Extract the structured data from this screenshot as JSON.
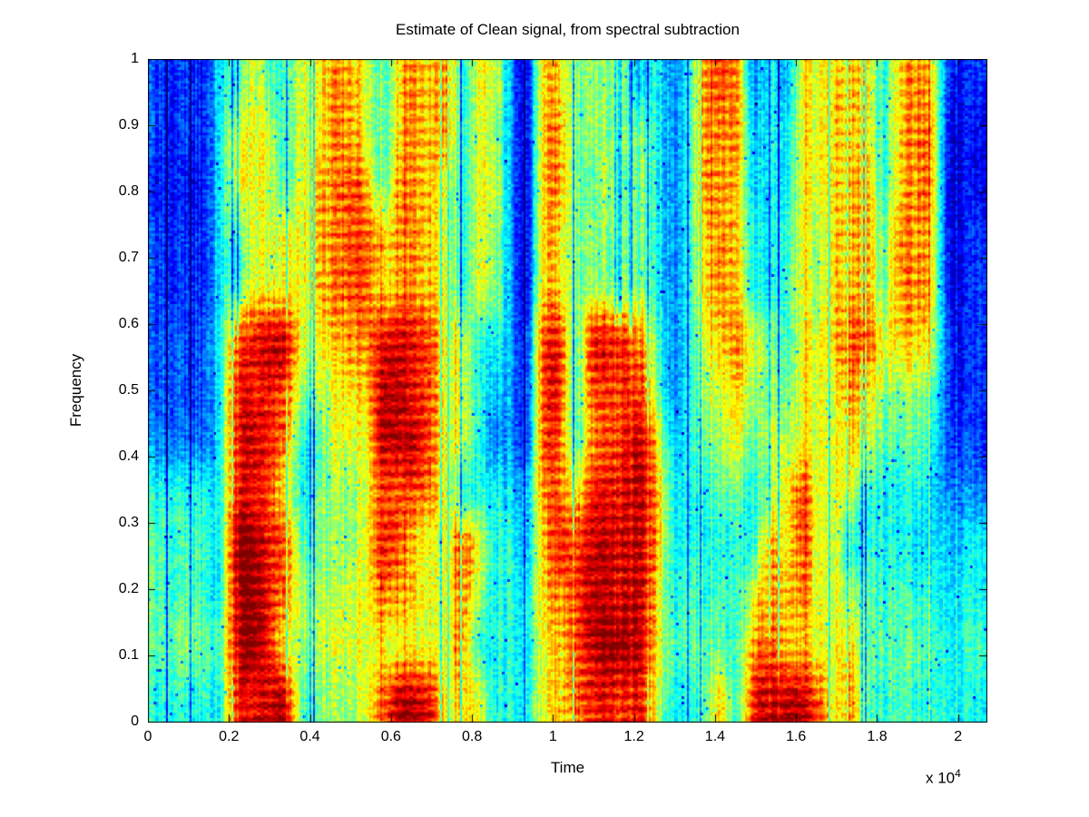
{
  "chart_data": {
    "type": "heatmap",
    "title": "Estimate of Clean signal, from spectral subtraction",
    "xlabel": "Time",
    "ylabel": "Frequency",
    "x_multiplier": "x 10",
    "x_multiplier_exponent": "4",
    "xlim": [
      0,
      20700
    ],
    "ylim": [
      0,
      1
    ],
    "x_ticks": [
      "0",
      "0.2",
      "0.4",
      "0.6",
      "0.8",
      "1",
      "1.2",
      "1.4",
      "1.6",
      "1.8",
      "2"
    ],
    "x_tick_values": [
      0,
      2000,
      4000,
      6000,
      8000,
      10000,
      12000,
      14000,
      16000,
      18000,
      20000
    ],
    "y_ticks": [
      "0",
      "0.1",
      "0.2",
      "0.3",
      "0.4",
      "0.5",
      "0.6",
      "0.7",
      "0.8",
      "0.9",
      "1"
    ],
    "y_tick_values": [
      0,
      0.1,
      0.2,
      0.3,
      0.4,
      0.5,
      0.6,
      0.7,
      0.8,
      0.9,
      1
    ],
    "colormap": "jet",
    "frame_color": "#000000",
    "background": "#ffffff",
    "grid": {
      "cols": 52,
      "rows": 13,
      "encoding": "hex digit 0-15 = normalized power 0-1; row 0 = frequency 1.0 (top), last row = frequency 0 (bottom); columns span time 0 to 20700",
      "intensity_rows": [
        "32326697699bb96abab69942aa78784646bcb46499aaa6aba323",
        "32326999699bb96abab69842ab78787646bbb56599aaa6abb222",
        "2222699969abcb6bba969942ab77877646bba56599aab6abb222",
        "3232669999abccabba969842aa78787646aba66698aab7bba223",
        "3232669999abcc9bba969842aa78787646aba66698aab7bba223",
        "33336cdee99abbdedc996643cd6dddb7469ab98699acc9aa9323",
        "33336dddc889aaeedc996543cd6ccdc84689a887999ba8887323",
        "43436dedb66999eeec996443cc6bcdea56789798999a97776333",
        "66666ddc967889cccb966655bc9ddeeb66677689c99966665444",
        "76766ffdc77889dca99c9665adceeeeb666666b9c99666655556",
        "76766efdb88899bba99b8666abceeeea676769bab99876766566",
        "77877efd98899999999b66669aceffea77776bcaa99a77776667",
        "66666ddee77889beed9a96669abdddd9667a6deeec9b76766666"
      ]
    }
  }
}
